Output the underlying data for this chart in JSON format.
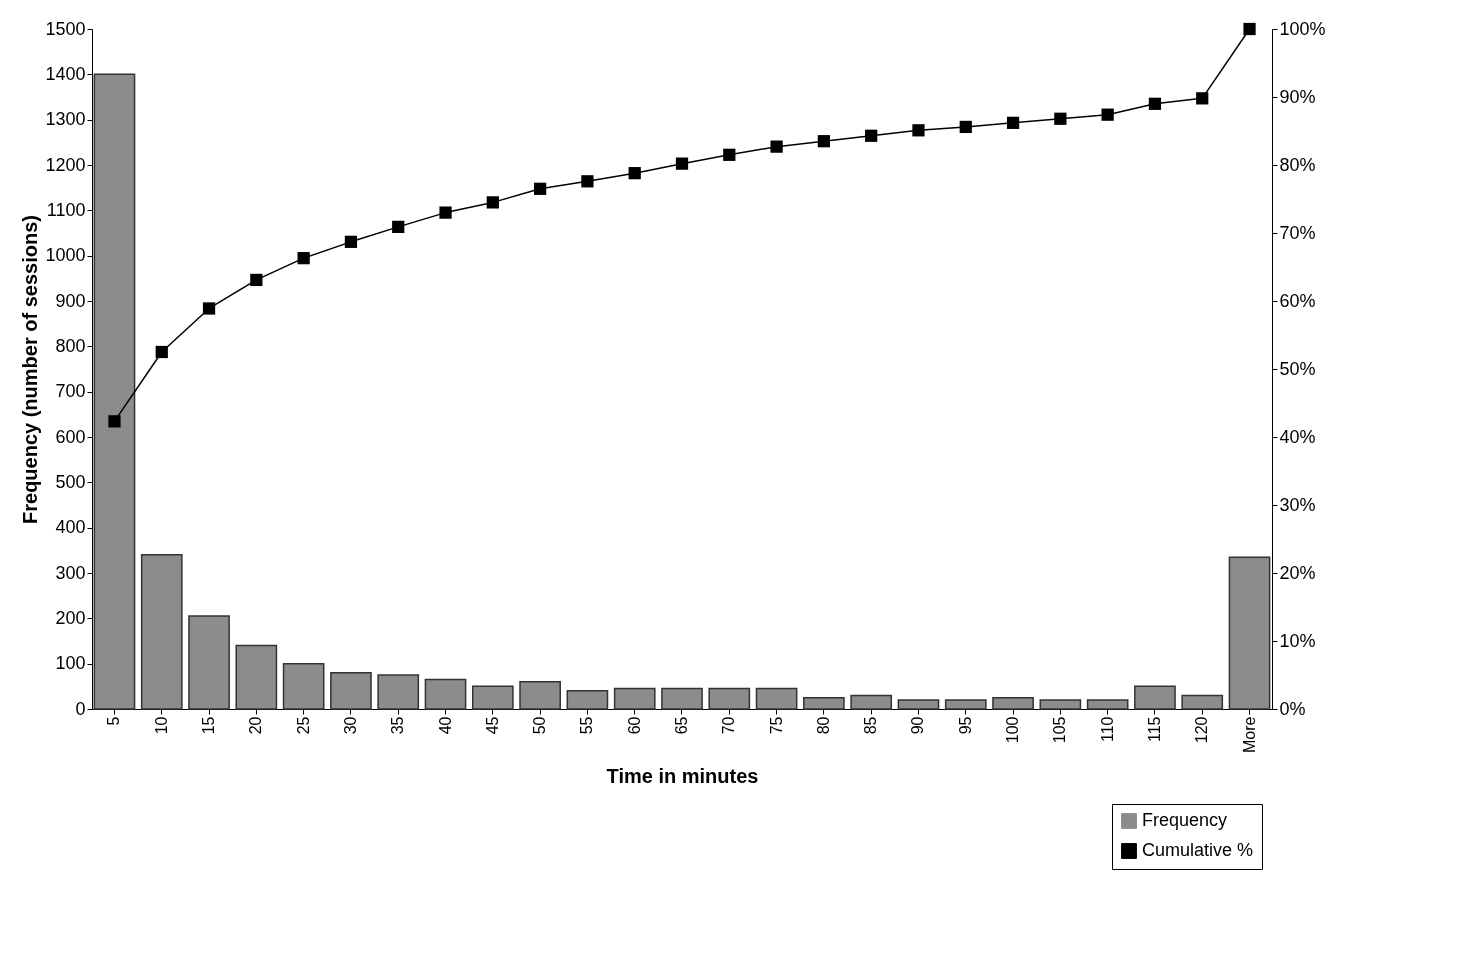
{
  "chart_data": {
    "type": "bar",
    "xlabel": "Time in minutes",
    "ylabel": "Frequency (number of sessions)",
    "categories": [
      "5",
      "10",
      "15",
      "20",
      "25",
      "30",
      "35",
      "40",
      "45",
      "50",
      "55",
      "60",
      "65",
      "70",
      "75",
      "80",
      "85",
      "90",
      "95",
      "100",
      "105",
      "110",
      "115",
      "120",
      "More"
    ],
    "series": [
      {
        "name": "Frequency",
        "color": "#8c8c8c",
        "values": [
          1400,
          340,
          205,
          140,
          100,
          80,
          75,
          65,
          50,
          60,
          40,
          45,
          45,
          45,
          45,
          25,
          30,
          20,
          20,
          25,
          20,
          20,
          50,
          30,
          335
        ]
      },
      {
        "name": "Cumulative %",
        "type": "line",
        "axis": "y2",
        "color": "#000000",
        "marker": "square",
        "values": [
          42.3,
          52.5,
          58.9,
          63.1,
          66.3,
          68.7,
          70.9,
          73.0,
          74.5,
          76.5,
          77.6,
          78.8,
          80.2,
          81.5,
          82.7,
          83.5,
          84.3,
          85.1,
          85.6,
          86.2,
          86.8,
          87.4,
          89.0,
          89.8,
          100
        ]
      }
    ],
    "ylim": [
      0,
      1500
    ],
    "yticks": [
      0,
      100,
      200,
      300,
      400,
      500,
      600,
      700,
      800,
      900,
      1000,
      1100,
      1200,
      1300,
      1400,
      1500
    ],
    "y2lim": [
      0,
      100
    ],
    "y2ticks": [
      {
        "value": 0,
        "label": "0%"
      },
      {
        "value": 10,
        "label": "10%"
      },
      {
        "value": 20,
        "label": "20%"
      },
      {
        "value": 30,
        "label": "30%"
      },
      {
        "value": 40,
        "label": "40%"
      },
      {
        "value": 50,
        "label": "50%"
      },
      {
        "value": 60,
        "label": "60%"
      },
      {
        "value": 70,
        "label": "70%"
      },
      {
        "value": 80,
        "label": "80%"
      },
      {
        "value": 90,
        "label": "90%"
      },
      {
        "value": 100,
        "label": "100%"
      }
    ],
    "grid": false,
    "legend": "bottom right"
  }
}
